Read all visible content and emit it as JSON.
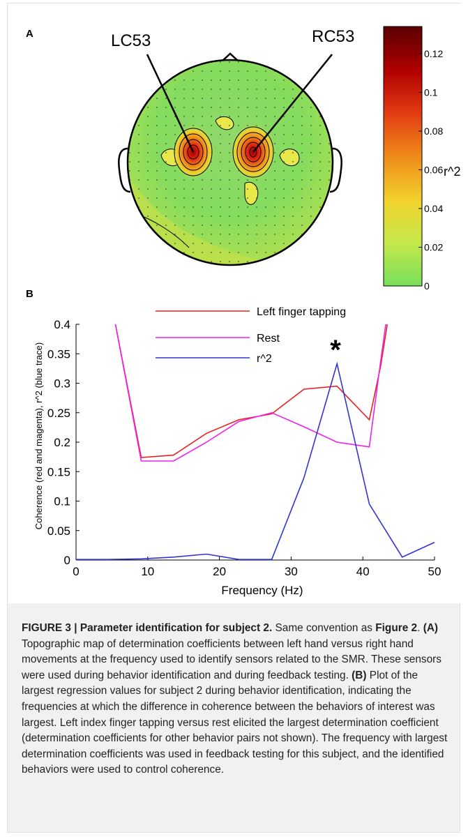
{
  "panel_a": {
    "label": "A",
    "left_sensor": "LC53",
    "right_sensor": "RC53",
    "colorbar": {
      "ticks": [
        "0.12",
        "0.1",
        "0.08",
        "0.06",
        "0.04",
        "0.02",
        "0"
      ],
      "label": "r^2",
      "colors": [
        "#5a0000",
        "#b00000",
        "#e23a12",
        "#ee8a1a",
        "#f2d22c",
        "#c6e84a",
        "#78e05a"
      ]
    }
  },
  "panel_b": {
    "label": "B",
    "asterisk": "*"
  },
  "chart_data": {
    "type": "line",
    "xlabel": "Frequency (Hz)",
    "ylabel": "Coherence (red and magenta), r^2 (blue trace)",
    "xlim": [
      0,
      50
    ],
    "ylim": [
      0,
      0.4
    ],
    "xticks": [
      "0",
      "10",
      "20",
      "30",
      "40",
      "50"
    ],
    "yticks": [
      "0",
      "0.05",
      "0.1",
      "0.15",
      "0.2",
      "0.25",
      "0.3",
      "0.35",
      "0.4"
    ],
    "legend_position": "top",
    "series": [
      {
        "name": "Left finger tapping",
        "color": "#e8211f",
        "x": [
          5.5,
          9.1,
          13.6,
          18.2,
          22.7,
          27.3,
          31.8,
          36.4,
          40.9,
          42.5,
          43.4
        ],
        "y": [
          0.4,
          0.174,
          0.178,
          0.215,
          0.238,
          0.248,
          0.29,
          0.295,
          0.238,
          0.33,
          0.4
        ]
      },
      {
        "name": "Rest",
        "color": "#ee22ee",
        "x": [
          5.5,
          9.1,
          13.6,
          18.2,
          22.7,
          27.3,
          31.8,
          36.4,
          40.9,
          42.4,
          43.2
        ],
        "y": [
          0.4,
          0.168,
          0.168,
          0.2,
          0.235,
          0.25,
          0.226,
          0.2,
          0.192,
          0.33,
          0.4
        ]
      },
      {
        "name": "r^2",
        "color": "#3433d6",
        "x": [
          0,
          4.5,
          9.1,
          13.6,
          18.2,
          22.7,
          27.3,
          31.8,
          36.4,
          40.9,
          45.5,
          50
        ],
        "y": [
          0.001,
          0.001,
          0.002,
          0.005,
          0.01,
          0.001,
          0.001,
          0.14,
          0.333,
          0.095,
          0.005,
          0.03
        ]
      }
    ]
  },
  "caption": {
    "figure_label": "FIGURE 3 | Parameter identification for subject 2.",
    "part1": " Same convention as ",
    "figure_ref": "Figure 2",
    "part2": ". ",
    "label_a": "(A)",
    "text_a": " Topographic map of determination coefficients between left hand versus right hand movements at the frequency used to identify sensors related to the SMR. These sensors were used during behavior identification and during feedback testing. ",
    "label_b": "(B)",
    "text_b": " Plot of the largest regression values for subject 2 during behavior identification, indicating the frequencies at which the difference in coherence between the behaviors of interest was largest. Left index finger tapping versus rest elicited the largest determination coefficient (determination coefficients for other behavior pairs not shown). The frequency with largest determination coefficients was used in feedback testing for this subject, and the identified behaviors were used to control coherence."
  }
}
